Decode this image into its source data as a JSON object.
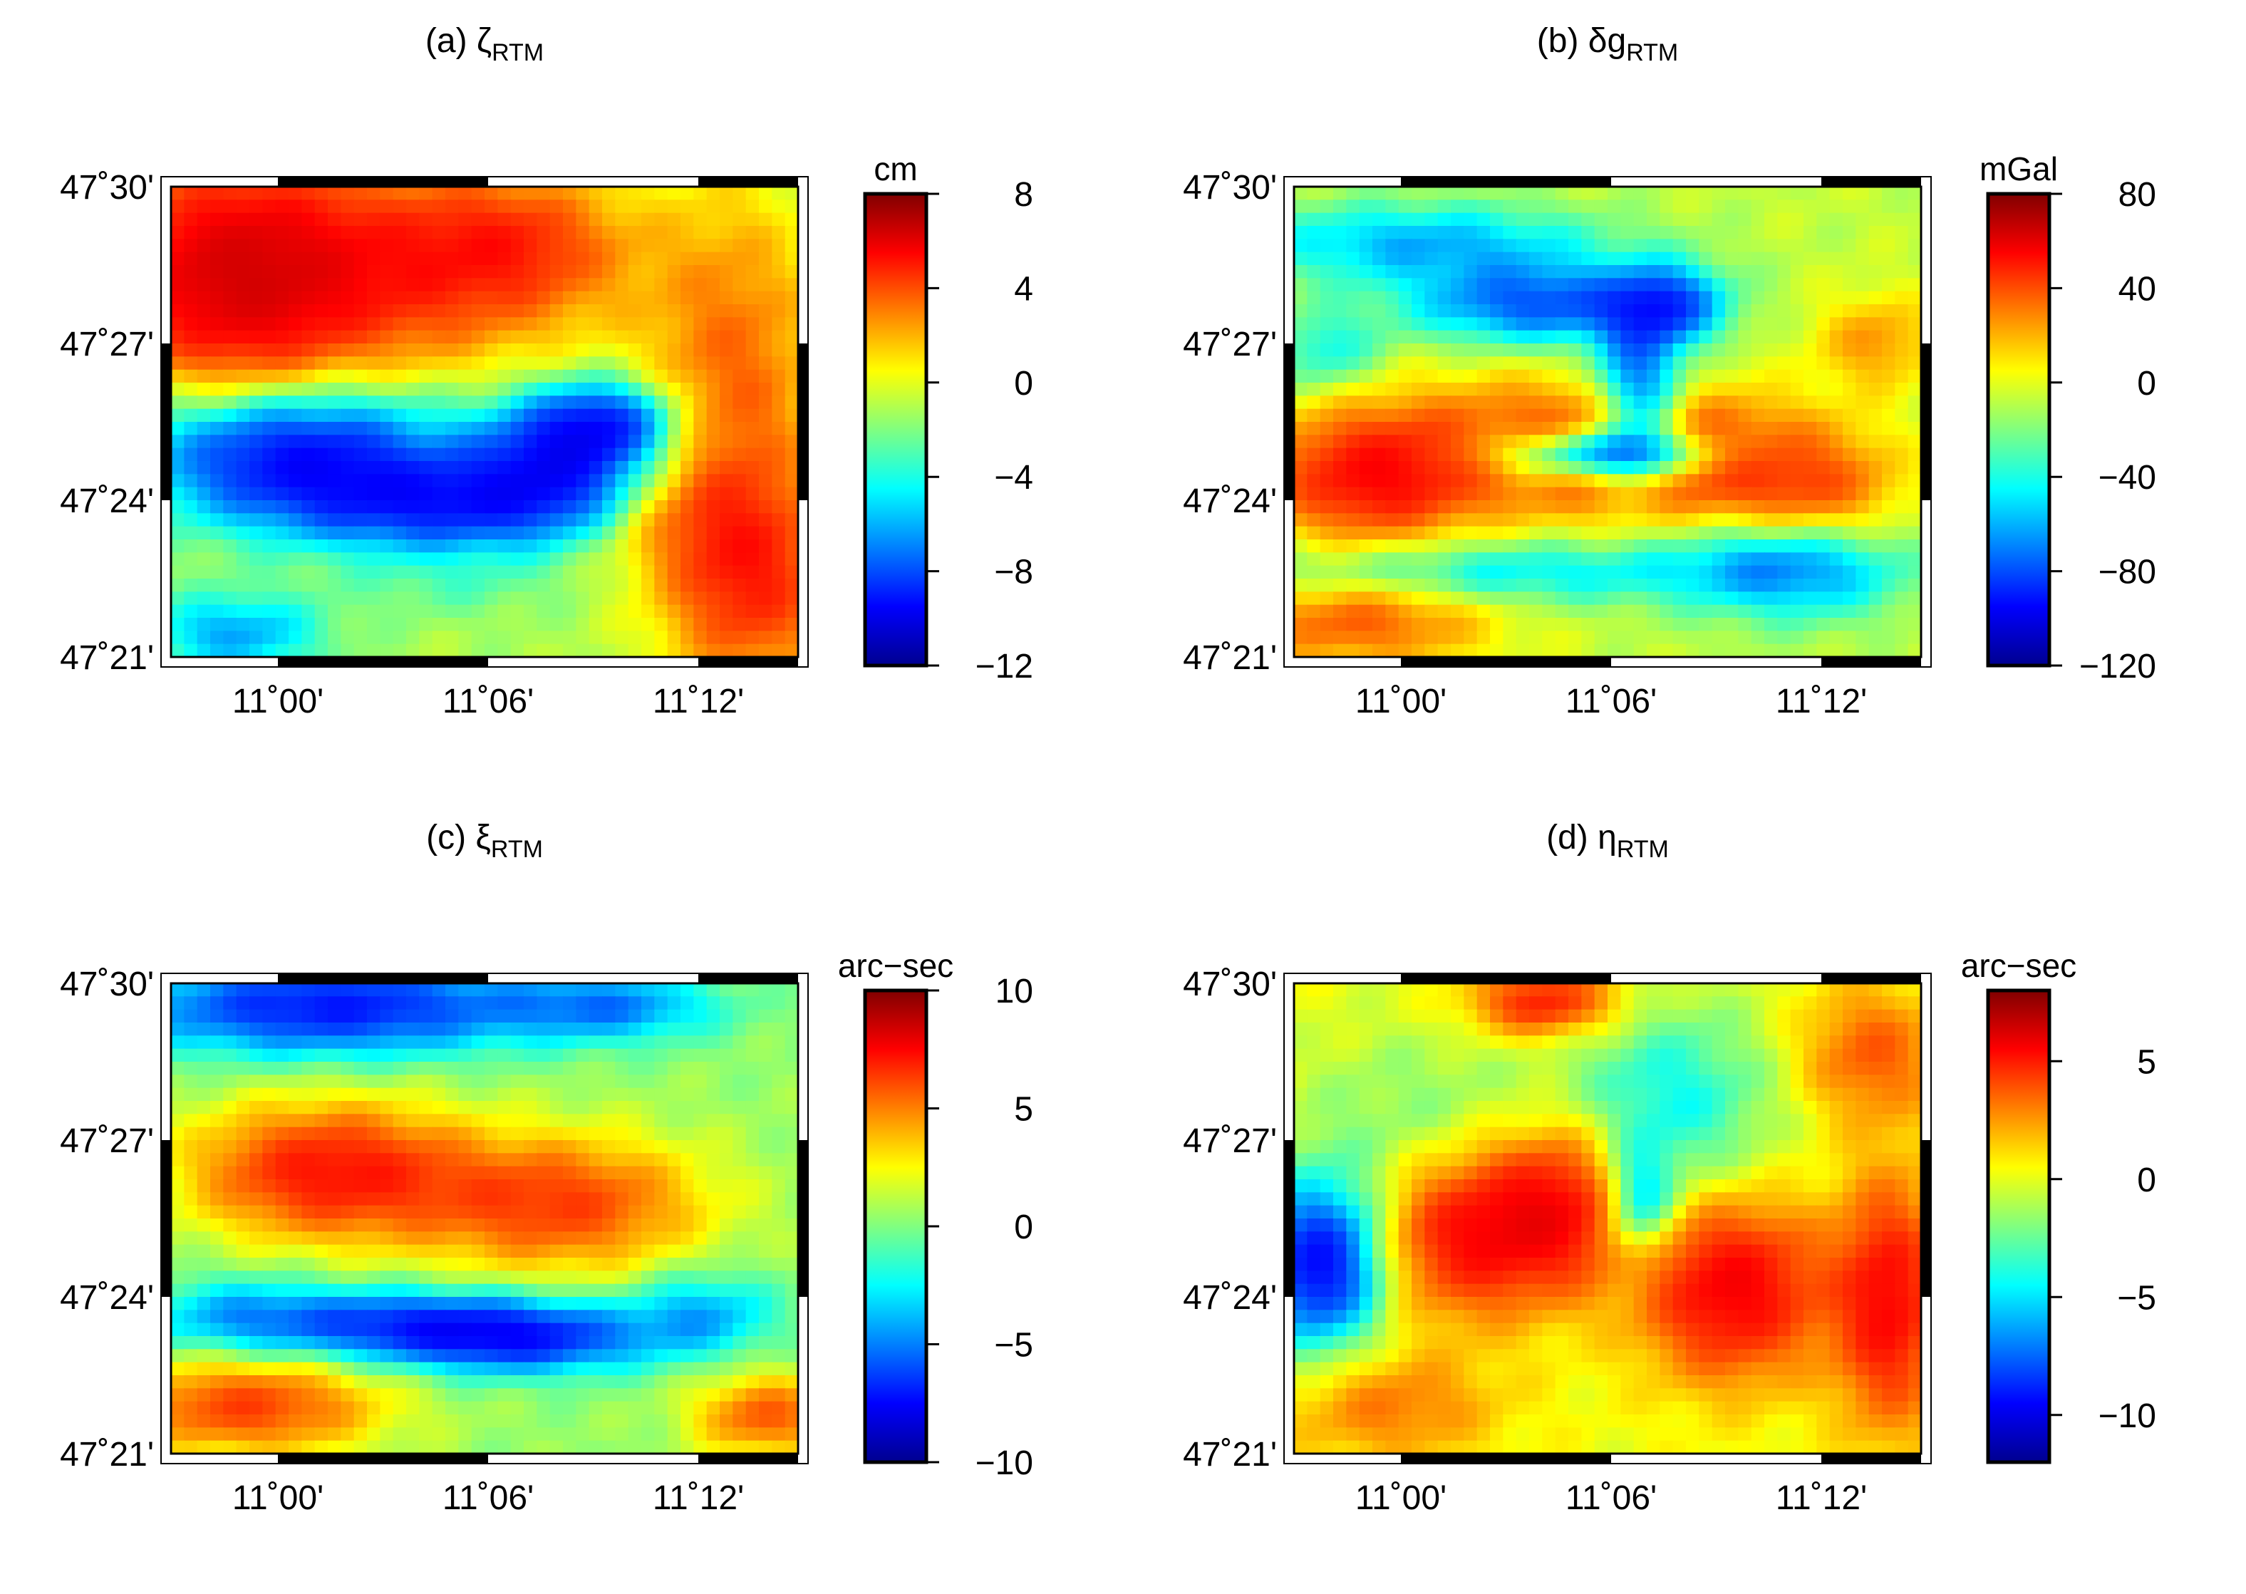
{
  "figure": {
    "panels": [
      {
        "id": "a",
        "title_prefix": "(a) ζ",
        "title_sub": "RTM",
        "unit": "cm",
        "colorbar_ticks": [
          "8",
          "4",
          "0",
          "−4",
          "−8",
          "−12"
        ],
        "colorbar_values": [
          8,
          4,
          0,
          -4,
          -8,
          -12
        ],
        "crange": [
          -12,
          8
        ]
      },
      {
        "id": "b",
        "title_prefix": "(b) δg",
        "title_sub": "RTM",
        "unit": "mGal",
        "colorbar_ticks": [
          "80",
          "40",
          "0",
          "−40",
          "−80",
          "−120"
        ],
        "colorbar_values": [
          80,
          40,
          0,
          -40,
          -80,
          -120
        ],
        "crange": [
          -120,
          80
        ]
      },
      {
        "id": "c",
        "title_prefix": "(c) ξ",
        "title_sub": "RTM",
        "unit": "arc−sec",
        "colorbar_ticks": [
          "10",
          "5",
          "0",
          "−5",
          "−10"
        ],
        "colorbar_values": [
          10,
          5,
          0,
          -5,
          -10
        ],
        "crange": [
          -10,
          10
        ]
      },
      {
        "id": "d",
        "title_prefix": "(d) η",
        "title_sub": "RTM",
        "unit": "arc−sec",
        "colorbar_ticks": [
          "5",
          "0",
          "−5",
          "−10"
        ],
        "colorbar_values": [
          5,
          0,
          -5,
          -10
        ],
        "crange": [
          -12,
          8
        ]
      }
    ],
    "lat_labels": [
      "47˚30'",
      "47˚27'",
      "47˚24'",
      "47˚21'"
    ],
    "lon_labels": [
      "11˚00'",
      "11˚06'",
      "11˚12'"
    ],
    "colormap": [
      "#00008f",
      "#0000ff",
      "#0080ff",
      "#00ffff",
      "#80ff80",
      "#ffff00",
      "#ff8000",
      "#ff0000",
      "#800000"
    ]
  },
  "chart_data": [
    {
      "type": "heatmap",
      "title": "(a) ζRTM",
      "unit": "cm",
      "x_ticks": [
        "11˚00'",
        "11˚06'",
        "11˚12'"
      ],
      "y_ticks": [
        "47˚30'",
        "47˚27'",
        "47˚24'",
        "47˚21'"
      ],
      "xlim": [
        10.95,
        11.225
      ],
      "ylim": [
        47.35,
        47.5
      ],
      "zlim": [
        -12,
        8
      ],
      "colorbar_ticks": [
        8,
        4,
        0,
        -4,
        -8,
        -12
      ],
      "colormap": "jet"
    },
    {
      "type": "heatmap",
      "title": "(b) δgRTM",
      "unit": "mGal",
      "x_ticks": [
        "11˚00'",
        "11˚06'",
        "11˚12'"
      ],
      "y_ticks": [
        "47˚30'",
        "47˚27'",
        "47˚24'",
        "47˚21'"
      ],
      "xlim": [
        10.95,
        11.225
      ],
      "ylim": [
        47.35,
        47.5
      ],
      "zlim": [
        -120,
        80
      ],
      "colorbar_ticks": [
        80,
        40,
        0,
        -40,
        -80,
        -120
      ],
      "colormap": "jet"
    },
    {
      "type": "heatmap",
      "title": "(c) ξRTM",
      "unit": "arc−sec",
      "x_ticks": [
        "11˚00'",
        "11˚06'",
        "11˚12'"
      ],
      "y_ticks": [
        "47˚30'",
        "47˚27'",
        "47˚24'",
        "47˚21'"
      ],
      "xlim": [
        10.95,
        11.225
      ],
      "ylim": [
        47.35,
        47.5
      ],
      "zlim": [
        -10,
        10
      ],
      "colorbar_ticks": [
        10,
        5,
        0,
        -5,
        -10
      ],
      "colormap": "jet"
    },
    {
      "type": "heatmap",
      "title": "(d) ηRTM",
      "unit": "arc−sec",
      "x_ticks": [
        "11˚00'",
        "11˚06'",
        "11˚12'"
      ],
      "y_ticks": [
        "47˚30'",
        "47˚27'",
        "47˚24'",
        "47˚21'"
      ],
      "xlim": [
        10.95,
        11.225
      ],
      "ylim": [
        47.35,
        47.5
      ],
      "zlim": [
        -12,
        8
      ],
      "colorbar_ticks": [
        5,
        0,
        -5,
        -10
      ],
      "colormap": "jet"
    }
  ]
}
